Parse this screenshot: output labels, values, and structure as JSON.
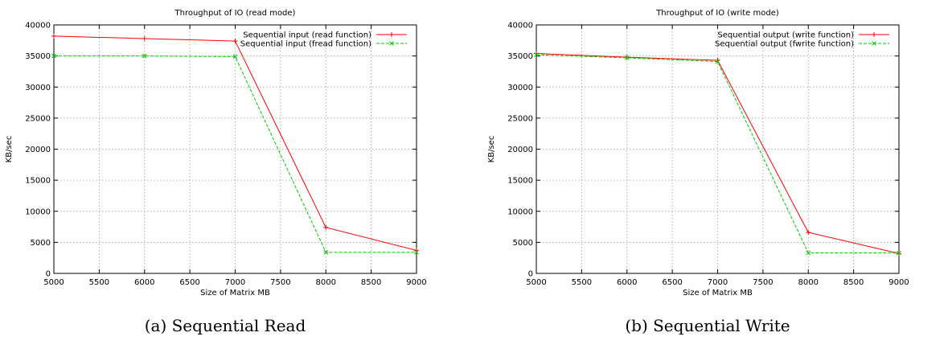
{
  "chart_data": [
    {
      "type": "line",
      "title": "Throughput of IO (read mode)",
      "xlabel": "Size of Matrix MB",
      "ylabel": "KB/sec",
      "xlim": [
        5000,
        9000
      ],
      "ylim": [
        0,
        40000
      ],
      "xticks": [
        5000,
        5500,
        6000,
        6500,
        7000,
        7500,
        8000,
        8500,
        9000
      ],
      "yticks": [
        0,
        5000,
        10000,
        15000,
        20000,
        25000,
        30000,
        35000,
        40000
      ],
      "grid": true,
      "legend_position": "top-right",
      "caption": "(a) Sequential Read",
      "series": [
        {
          "name": "Sequential input (read function)",
          "color": "#ff0000",
          "dashed": false,
          "marker": "plus",
          "x": [
            5000,
            6000,
            7000,
            8000,
            9000
          ],
          "y": [
            38200,
            37800,
            37400,
            7400,
            3700
          ]
        },
        {
          "name": "Sequential input (fread function)",
          "color": "#00cc00",
          "dashed": true,
          "marker": "cross",
          "x": [
            5000,
            6000,
            7000,
            8000,
            9000
          ],
          "y": [
            35000,
            35000,
            34900,
            3400,
            3400
          ]
        }
      ]
    },
    {
      "type": "line",
      "title": "Throughput of IO (write mode)",
      "xlabel": "Size of Matrix MB",
      "ylabel": "KB/sec",
      "xlim": [
        5000,
        9000
      ],
      "ylim": [
        0,
        40000
      ],
      "xticks": [
        5000,
        5500,
        6000,
        6500,
        7000,
        7500,
        8000,
        8500,
        9000
      ],
      "yticks": [
        0,
        5000,
        10000,
        15000,
        20000,
        25000,
        30000,
        35000,
        40000
      ],
      "grid": true,
      "legend_position": "top-right",
      "caption": "(b) Sequential Write",
      "series": [
        {
          "name": "Sequential output (write function)",
          "color": "#ff0000",
          "dashed": false,
          "marker": "plus",
          "x": [
            5000,
            6000,
            7000,
            8000,
            9000
          ],
          "y": [
            35400,
            34800,
            34300,
            6600,
            3200
          ]
        },
        {
          "name": "Sequential output (fwrite function)",
          "color": "#00cc00",
          "dashed": true,
          "marker": "cross",
          "x": [
            5000,
            6000,
            7000,
            8000,
            9000
          ],
          "y": [
            35200,
            34700,
            34100,
            3300,
            3300
          ]
        }
      ]
    }
  ]
}
